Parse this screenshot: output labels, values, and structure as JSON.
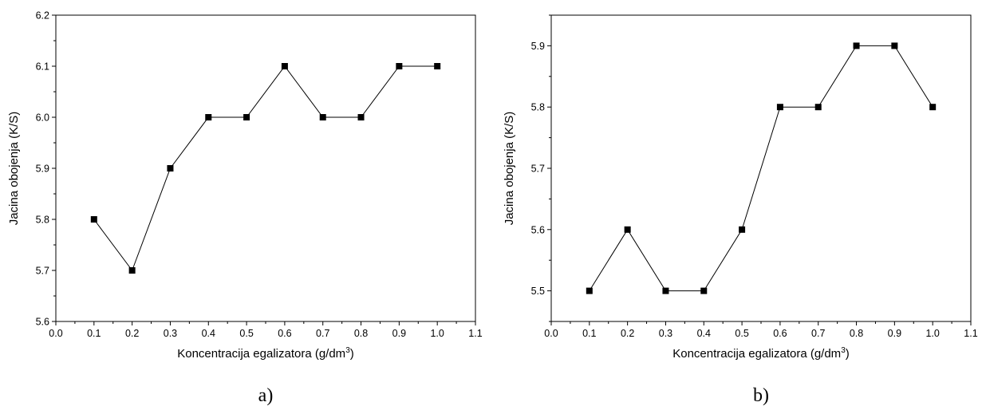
{
  "chart_data": [
    {
      "type": "line",
      "caption": "a)",
      "xlabel": "Koncentracija egalizatora (g/dm",
      "xlabel_sup": "3",
      "xlabel_close": ")",
      "ylabel": "Jacina obojenja (K/S)",
      "xlim": [
        0.0,
        1.1
      ],
      "ylim": [
        5.6,
        6.2
      ],
      "xticks": [
        "0.0",
        "0.1",
        "0.2",
        "0.3",
        "0.4",
        "0.5",
        "0.6",
        "0.7",
        "0.8",
        "0.9",
        "1.0",
        "1.1"
      ],
      "yticks": [
        "5.6",
        "5.7",
        "5.8",
        "5.9",
        "6.0",
        "6.1",
        "6.2"
      ],
      "grid": false,
      "marker": "square",
      "color": "#000000",
      "x": [
        0.1,
        0.2,
        0.3,
        0.4,
        0.5,
        0.6,
        0.7,
        0.8,
        0.9,
        1.0
      ],
      "y": [
        5.8,
        5.7,
        5.9,
        6.0,
        6.0,
        6.1,
        6.0,
        6.0,
        6.1,
        6.1
      ]
    },
    {
      "type": "line",
      "caption": "b)",
      "xlabel": "Koncentracija egalizatora (g/dm",
      "xlabel_sup": "3",
      "xlabel_close": ")",
      "ylabel": "Jacina obojenja (K/S)",
      "xlim": [
        0.0,
        1.1
      ],
      "ylim": [
        5.45,
        5.95
      ],
      "xticks": [
        "0.0",
        "0.1",
        "0.2",
        "0.3",
        "0.4",
        "0.5",
        "0.6",
        "0.7",
        "0.8",
        "0.9",
        "1.0",
        "1.1"
      ],
      "yticks": [
        "5.5",
        "5.6",
        "5.7",
        "5.8",
        "5.9"
      ],
      "grid": false,
      "marker": "square",
      "color": "#000000",
      "x": [
        0.1,
        0.2,
        0.3,
        0.4,
        0.5,
        0.6,
        0.7,
        0.8,
        0.9,
        1.0
      ],
      "y": [
        5.5,
        5.6,
        5.5,
        5.5,
        5.6,
        5.8,
        5.8,
        5.9,
        5.9,
        5.8
      ]
    }
  ]
}
